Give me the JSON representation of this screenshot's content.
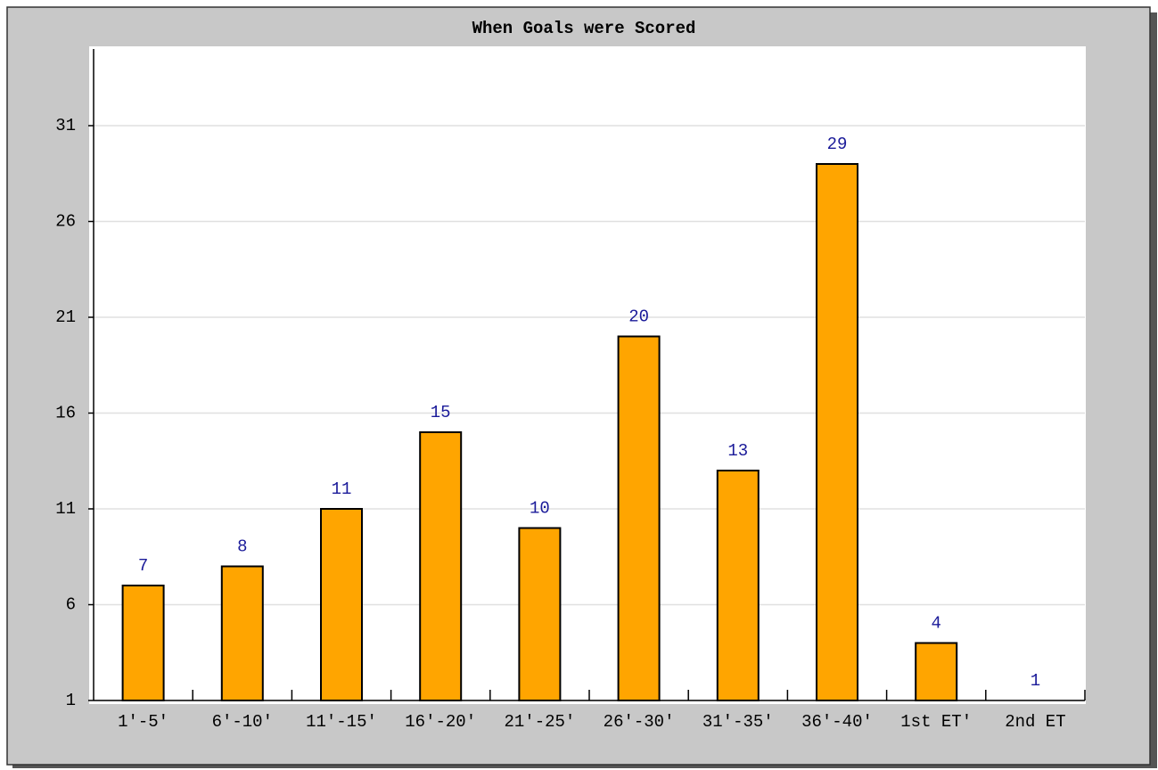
{
  "chart_data": {
    "type": "bar",
    "title": "When Goals were Scored",
    "categories": [
      "1′-5′",
      "6′-10′",
      "11′-15′",
      "16′-20′",
      "21′-25′",
      "26′-30′",
      "31′-35′",
      "36′-40′",
      "1st ET′",
      "2nd ET"
    ],
    "values": [
      7,
      8,
      11,
      15,
      10,
      20,
      13,
      29,
      4,
      1
    ],
    "color": "#ffa500",
    "ylim": [
      1,
      35
    ],
    "yticks": [
      1,
      6,
      11,
      16,
      21,
      26,
      31
    ],
    "grid": true
  }
}
